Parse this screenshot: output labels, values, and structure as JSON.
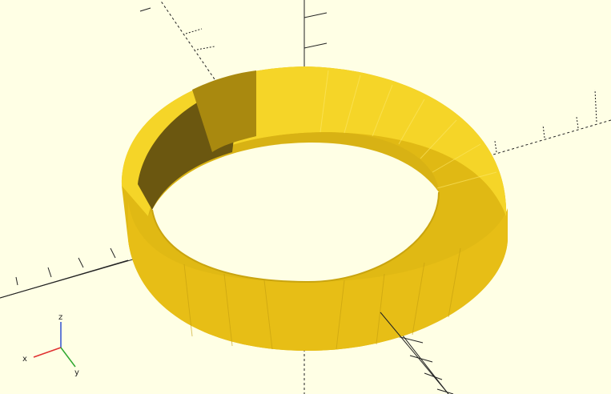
{
  "viewport": {
    "background": "#ffffe5",
    "model_color": "#f7d21a",
    "shape": "ring"
  },
  "axis_gizmo": {
    "x_label": "x",
    "y_label": "y",
    "z_label": "z",
    "x_color": "#e03030",
    "y_color": "#2fa82f",
    "z_color": "#3050d0"
  }
}
